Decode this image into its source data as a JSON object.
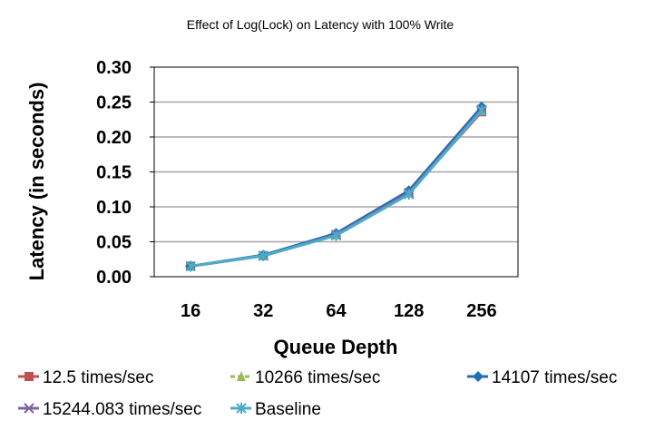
{
  "chart_data": {
    "type": "line",
    "title": "Effect of Log(Lock) on Latency with 100% Write",
    "xlabel": "Queue Depth",
    "ylabel": "Latency (in seconds)",
    "categories": [
      "16",
      "32",
      "64",
      "128",
      "256"
    ],
    "ylim": [
      0,
      0.3
    ],
    "yticks": [
      "0.00",
      "0.05",
      "0.10",
      "0.15",
      "0.20",
      "0.25",
      "0.30"
    ],
    "grid": true,
    "legend_position": "bottom",
    "series": [
      {
        "name": "12.5 times/sec",
        "color": "#c0504d",
        "marker": "square",
        "values": [
          0.015,
          0.03,
          0.06,
          0.12,
          0.236
        ]
      },
      {
        "name": "10266 times/sec",
        "color": "#9bbb59",
        "marker": "triangle",
        "dashed": true,
        "values": [
          0.015,
          0.03,
          0.06,
          0.12,
          0.238
        ]
      },
      {
        "name": "14107 times/sec",
        "color": "#1f6fb4",
        "marker": "diamond",
        "values": [
          0.015,
          0.031,
          0.062,
          0.123,
          0.243
        ]
      },
      {
        "name": "15244.083 times/sec",
        "color": "#8064a2",
        "marker": "x",
        "values": [
          0.015,
          0.03,
          0.06,
          0.12,
          0.239
        ]
      },
      {
        "name": "Baseline",
        "color": "#4bacc6",
        "marker": "star",
        "values": [
          0.015,
          0.03,
          0.059,
          0.118,
          0.238
        ]
      }
    ]
  }
}
